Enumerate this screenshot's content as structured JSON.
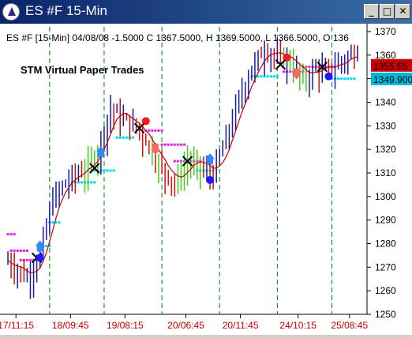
{
  "window": {
    "title": "ES #F 15-Min",
    "minimize_label": "_",
    "maximize_label": "□",
    "close_label": "✕"
  },
  "chart_data": {
    "type": "candlestick",
    "info_line": "ES #F [15-Min] 04/08/08  -1.5000 C 1367.5000, H 1369.5000, L 1366.5000, O 136",
    "annotation": "STM Virtual Paper Trades",
    "ylim": [
      1250,
      1372
    ],
    "y_ticks": [
      1250,
      1260,
      1270,
      1280,
      1290,
      1300,
      1310,
      1320,
      1330,
      1340,
      1350,
      1360,
      1370
    ],
    "x_ticks": [
      "17/11:15",
      "18/09:45",
      "19/08:15",
      "20/06:45",
      "20/11:45",
      "24/10:15",
      "25/08:45"
    ],
    "price_labels": [
      {
        "value": 1355.65,
        "text": "1355.65",
        "color": "#cc0000"
      },
      {
        "value": 1349.9,
        "text": "1349.900",
        "color": "#00b8d8"
      }
    ],
    "colors": {
      "up_bar": "#1a1aa0",
      "down_bar": "#d01010",
      "green_bar": "#44cc22",
      "moving_average": "#cc0000",
      "session_line": "#008800",
      "cyan_dots": "#00e0f0",
      "magenta_dots": "#ee22ee"
    },
    "session_dividers": [
      1262.5,
      1280,
      1298,
      1316,
      1334,
      1352
    ],
    "trades": [
      {
        "type": "buy-entry-arrow",
        "bar": 10,
        "price": 1279
      },
      {
        "type": "exit-cross",
        "bar": 9,
        "price": 1274
      },
      {
        "type": "buy-dot",
        "bar": 10,
        "price": 1274
      },
      {
        "type": "buy-entry-arrow",
        "bar": 29,
        "price": 1319
      },
      {
        "type": "exit-cross",
        "bar": 27,
        "price": 1312
      },
      {
        "type": "sell-dot",
        "bar": 43,
        "price": 1332
      },
      {
        "type": "exit-cross",
        "bar": 41,
        "price": 1329
      },
      {
        "type": "sell-entry-arrow",
        "bar": 46,
        "price": 1320
      },
      {
        "type": "exit-cross",
        "bar": 56,
        "price": 1315
      },
      {
        "type": "buy-dot",
        "bar": 63,
        "price": 1307
      },
      {
        "type": "buy-entry-arrow",
        "bar": 63,
        "price": 1316
      },
      {
        "type": "sell-dot",
        "bar": 87,
        "price": 1359
      },
      {
        "type": "exit-cross",
        "bar": 85,
        "price": 1356
      },
      {
        "type": "sell-entry-arrow",
        "bar": 90,
        "price": 1352
      },
      {
        "type": "exit-cross",
        "bar": 98,
        "price": 1355
      },
      {
        "type": "buy-dot",
        "bar": 100,
        "price": 1351
      }
    ]
  }
}
